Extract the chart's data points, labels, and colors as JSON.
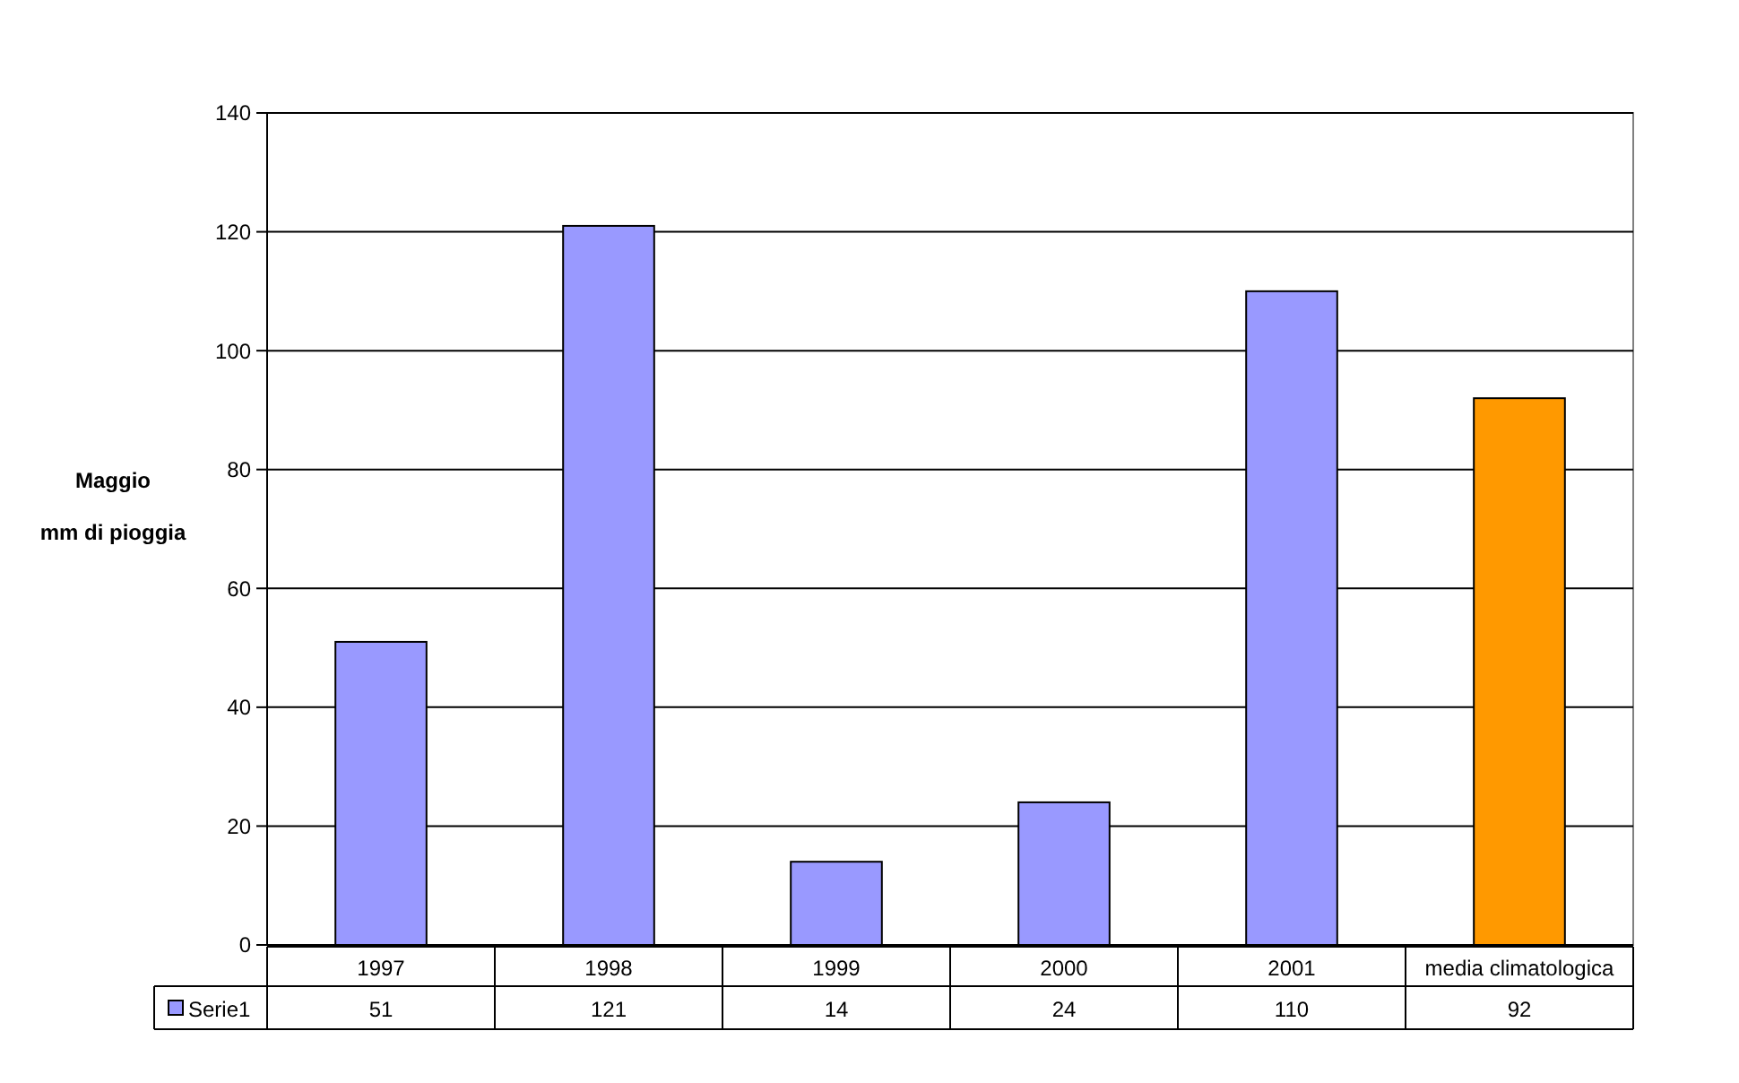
{
  "chart_data": {
    "type": "bar",
    "ylabel": "Maggio\nmm di pioggia",
    "categories": [
      "1997",
      "1998",
      "1999",
      "2000",
      "2001",
      "media climatologica"
    ],
    "series": [
      {
        "name": "Serie1",
        "color": "#9999ff",
        "colors": [
          "#9999ff",
          "#9999ff",
          "#9999ff",
          "#9999ff",
          "#9999ff",
          "#ff9900"
        ],
        "values": [
          51,
          121,
          14,
          24,
          110,
          92
        ]
      }
    ],
    "ylim": [
      0,
      140
    ],
    "yticks": [
      0,
      20,
      40,
      60,
      80,
      100,
      120,
      140
    ],
    "grid": "y",
    "legend": "bottom",
    "data_labels": true
  }
}
